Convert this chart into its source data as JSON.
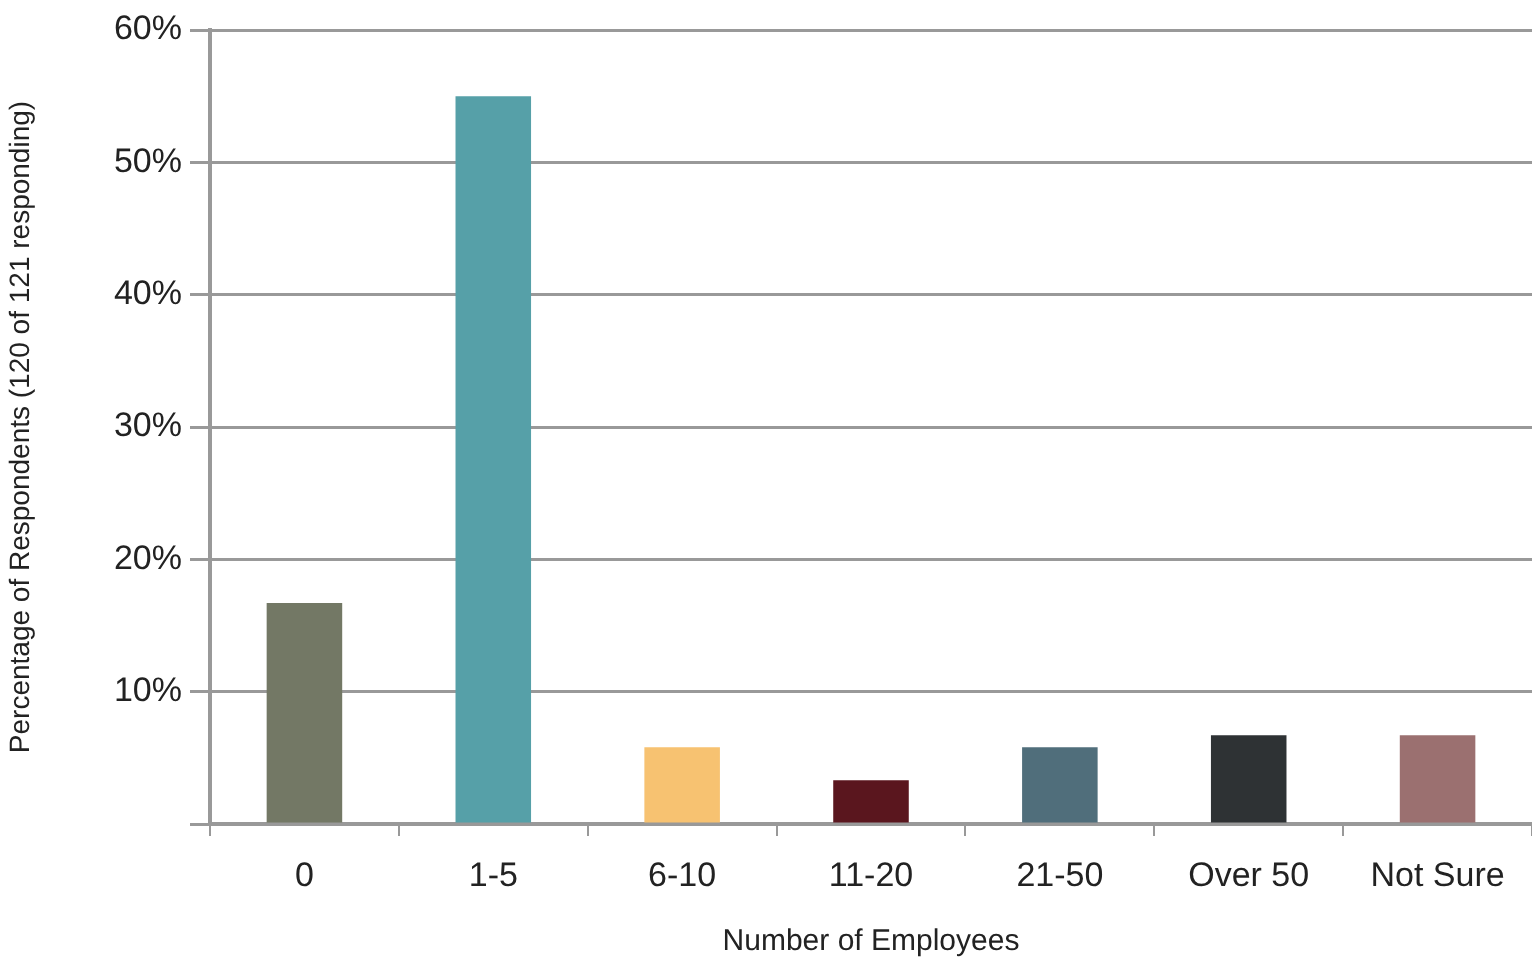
{
  "chart_data": {
    "type": "bar",
    "xlabel": "Number of Employees",
    "ylabel": "Percentage of Respondents (120 of 121 responding)",
    "categories": [
      "0",
      "1-5",
      "6-10",
      "11-20",
      "21-50",
      "Over 50",
      "Not Sure"
    ],
    "values": [
      16.7,
      55,
      5.8,
      3.3,
      5.8,
      6.7,
      6.7
    ],
    "colors": [
      "#737865",
      "#56a0a8",
      "#f7c271",
      "#5a161e",
      "#506e7b",
      "#2e3234",
      "#9b7070"
    ],
    "ylim": [
      0,
      60
    ],
    "yticks": [
      {
        "value": 0,
        "label": null
      },
      {
        "value": 10,
        "label": "10%"
      },
      {
        "value": 20,
        "label": "20%"
      },
      {
        "value": 30,
        "label": "30%"
      },
      {
        "value": 40,
        "label": "40%"
      },
      {
        "value": 50,
        "label": "50%"
      },
      {
        "value": 60,
        "label": "60%"
      }
    ],
    "grid": "y",
    "legend": false
  }
}
